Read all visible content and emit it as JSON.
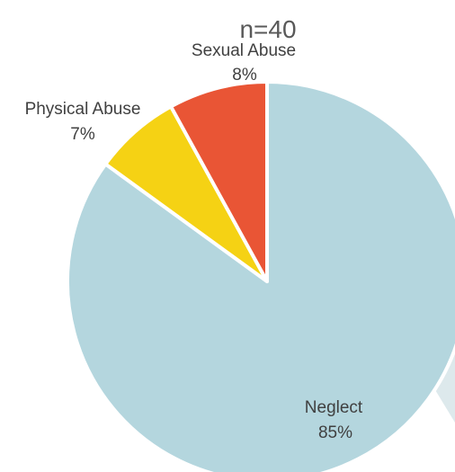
{
  "chart_data": {
    "type": "pie",
    "title": "n=40",
    "slices": [
      {
        "label": "Neglect",
        "percent_label": "85%",
        "value": 85,
        "color": "#b4d6de"
      },
      {
        "label": "Physical Abuse",
        "percent_label": "7%",
        "value": 7,
        "color": "#f5d214"
      },
      {
        "label": "Sexual Abuse",
        "percent_label": "8%",
        "value": 8,
        "color": "#e95535"
      }
    ],
    "start": "12 o'clock",
    "direction": "clockwise",
    "legend": "none",
    "slice_border_color": "#ffffff"
  }
}
